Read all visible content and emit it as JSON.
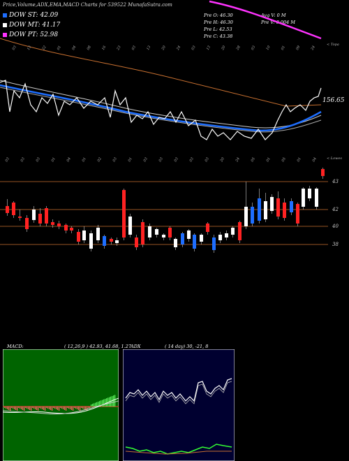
{
  "header": {
    "title": "Price,Volume,ADX,EMA,MACD Charts for 539522  MunafaSutra.com"
  },
  "legend": [
    {
      "label": "DOW ST: 42.09",
      "color": "#1e6eff"
    },
    {
      "label": "DOW MT: 41.17",
      "color": "#ffffff"
    },
    {
      "label": "DOW PT: 52.98",
      "color": "#ff33ff"
    }
  ],
  "stats": {
    "col1": [
      "Pre  O: 46.30",
      "Pre  H: 46.30",
      "Pre  L: 42.53",
      "Pre  C: 43.38"
    ],
    "col2": [
      "Avg V: 0  M",
      "Pre  V: 0.004  M"
    ]
  },
  "upper": {
    "price_label": "156.65",
    "top_caption": "< Topa",
    "bottom_caption": "< Lowes",
    "top_dates": [
      "03",
      "13",
      "22",
      "01",
      "04",
      "08",
      "16",
      "23",
      "03",
      "13",
      "20",
      "24",
      "03",
      "13",
      "20",
      "28",
      "03",
      "10",
      "01",
      "09",
      "24"
    ],
    "bottom_dates": [
      "03",
      "03",
      "03",
      "01",
      "04",
      "01",
      "02",
      "03",
      "01",
      "03",
      "03",
      "03",
      "03",
      "03",
      "20",
      "24",
      "05",
      "01",
      "05",
      "01",
      "04"
    ]
  },
  "candles_axis": {
    "levels": [
      "43",
      "42",
      "40",
      "38"
    ]
  },
  "macd": {
    "label": "MACD:",
    "values": "( 12,26,9 ) 42.93,  41.68,  1.27"
  },
  "adx": {
    "label": "ADX",
    "values": "( 14  day) 30,  -21,  8"
  },
  "chart_data": [
    {
      "type": "line",
      "title": "",
      "series": [
        {
          "name": "DOW ST",
          "latest": 42.09
        },
        {
          "name": "DOW MT",
          "latest": 41.17
        },
        {
          "name": "DOW PT",
          "latest": 52.98
        }
      ],
      "annotations": [
        "156.65"
      ]
    },
    {
      "type": "bar",
      "title": "Candlestick",
      "y_levels": [
        43,
        42,
        40,
        38
      ],
      "last_candle": {
        "open": 46.3,
        "high": 46.3,
        "low": 42.53,
        "close": 43.38
      }
    },
    {
      "type": "line",
      "title": "MACD",
      "params": [
        12,
        26,
        9
      ],
      "values": [
        42.93,
        41.68,
        1.27
      ]
    },
    {
      "type": "line",
      "title": "ADX",
      "period": 14,
      "values": [
        30,
        -21,
        8
      ]
    }
  ]
}
